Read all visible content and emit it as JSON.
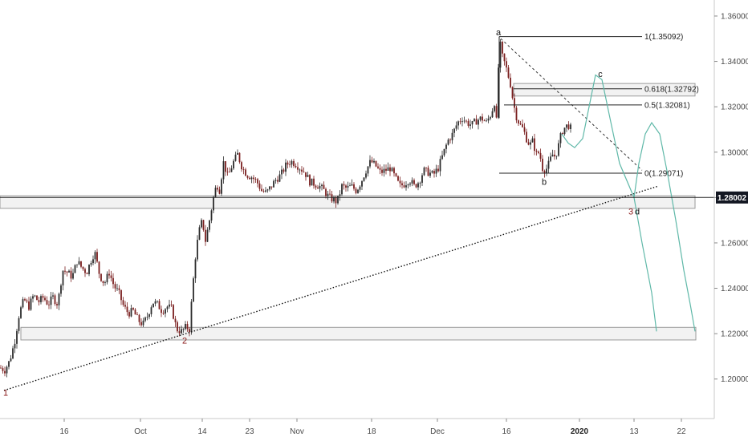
{
  "chart_data": {
    "type": "candlestick",
    "y_axis": {
      "ticks": [
        "1.36000",
        "1.34000",
        "1.32000",
        "1.30000",
        "1.28000",
        "1.26000",
        "1.24000",
        "1.22000",
        "1.20000"
      ],
      "range": [
        1.184,
        1.366
      ]
    },
    "x_axis": {
      "ticks": [
        {
          "label": "16",
          "bold": false
        },
        {
          "label": "Oct",
          "bold": false
        },
        {
          "label": "14",
          "bold": false
        },
        {
          "label": "23",
          "bold": false
        },
        {
          "label": "Nov",
          "bold": false
        },
        {
          "label": "18",
          "bold": false
        },
        {
          "label": "Dec",
          "bold": false
        },
        {
          "label": "16",
          "bold": false
        },
        {
          "label": "2020",
          "bold": true
        },
        {
          "label": "13",
          "bold": false
        },
        {
          "label": "22",
          "bold": false
        }
      ]
    },
    "current_price": {
      "label": "1.28002",
      "value": 1.28002
    },
    "price_path": [
      [
        0,
        1.205
      ],
      [
        6,
        1.204
      ],
      [
        12,
        1.208
      ],
      [
        18,
        1.216
      ],
      [
        24,
        1.229
      ],
      [
        30,
        1.235
      ],
      [
        36,
        1.232
      ],
      [
        42,
        1.237
      ],
      [
        48,
        1.234
      ],
      [
        54,
        1.236
      ],
      [
        60,
        1.233
      ],
      [
        66,
        1.236
      ],
      [
        72,
        1.233
      ],
      [
        78,
        1.248
      ],
      [
        84,
        1.247
      ],
      [
        90,
        1.245
      ],
      [
        96,
        1.252
      ],
      [
        102,
        1.249
      ],
      [
        108,
        1.247
      ],
      [
        114,
        1.253
      ],
      [
        118,
        1.256
      ],
      [
        124,
        1.246
      ],
      [
        130,
        1.242
      ],
      [
        136,
        1.247
      ],
      [
        142,
        1.241
      ],
      [
        148,
        1.238
      ],
      [
        154,
        1.232
      ],
      [
        160,
        1.229
      ],
      [
        166,
        1.23
      ],
      [
        172,
        1.226
      ],
      [
        178,
        1.224
      ],
      [
        184,
        1.228
      ],
      [
        190,
        1.234
      ],
      [
        196,
        1.233
      ],
      [
        202,
        1.23
      ],
      [
        208,
        1.232
      ],
      [
        214,
        1.231
      ],
      [
        220,
        1.222
      ],
      [
        226,
        1.221
      ],
      [
        232,
        1.223
      ],
      [
        236,
        1.222
      ],
      [
        240,
        1.24
      ],
      [
        244,
        1.256
      ],
      [
        248,
        1.265
      ],
      [
        252,
        1.27
      ],
      [
        256,
        1.261
      ],
      [
        260,
        1.268
      ],
      [
        266,
        1.28
      ],
      [
        270,
        1.286
      ],
      [
        274,
        1.283
      ],
      [
        278,
        1.296
      ],
      [
        284,
        1.289
      ],
      [
        290,
        1.295
      ],
      [
        296,
        1.299
      ],
      [
        302,
        1.293
      ],
      [
        308,
        1.29
      ],
      [
        314,
        1.289
      ],
      [
        320,
        1.287
      ],
      [
        326,
        1.283
      ],
      [
        332,
        1.282
      ],
      [
        338,
        1.285
      ],
      [
        344,
        1.288
      ],
      [
        350,
        1.29
      ],
      [
        356,
        1.294
      ],
      [
        362,
        1.296
      ],
      [
        368,
        1.295
      ],
      [
        374,
        1.293
      ],
      [
        380,
        1.291
      ],
      [
        386,
        1.287
      ],
      [
        392,
        1.286
      ],
      [
        398,
        1.285
      ],
      [
        404,
        1.283
      ],
      [
        410,
        1.28
      ],
      [
        416,
        1.279
      ],
      [
        420,
        1.278
      ],
      [
        426,
        1.285
      ],
      [
        432,
        1.284
      ],
      [
        438,
        1.285
      ],
      [
        444,
        1.283
      ],
      [
        450,
        1.287
      ],
      [
        456,
        1.292
      ],
      [
        462,
        1.296
      ],
      [
        468,
        1.294
      ],
      [
        474,
        1.291
      ],
      [
        480,
        1.292
      ],
      [
        486,
        1.293
      ],
      [
        492,
        1.289
      ],
      [
        498,
        1.285
      ],
      [
        504,
        1.286
      ],
      [
        510,
        1.288
      ],
      [
        516,
        1.285
      ],
      [
        522,
        1.287
      ],
      [
        528,
        1.292
      ],
      [
        534,
        1.291
      ],
      [
        540,
        1.29
      ],
      [
        546,
        1.293
      ],
      [
        552,
        1.299
      ],
      [
        558,
        1.305
      ],
      [
        564,
        1.308
      ],
      [
        570,
        1.313
      ],
      [
        576,
        1.315
      ],
      [
        582,
        1.313
      ],
      [
        588,
        1.312
      ],
      [
        594,
        1.314
      ],
      [
        600,
        1.315
      ],
      [
        606,
        1.313
      ],
      [
        612,
        1.317
      ],
      [
        616,
        1.322
      ],
      [
        619,
        1.312
      ],
      [
        622,
        1.35
      ],
      [
        626,
        1.342
      ],
      [
        630,
        1.338
      ],
      [
        636,
        1.33
      ],
      [
        640,
        1.321
      ],
      [
        644,
        1.315
      ],
      [
        648,
        1.312
      ],
      [
        652,
        1.31
      ],
      [
        656,
        1.306
      ],
      [
        660,
        1.303
      ],
      [
        664,
        1.305
      ],
      [
        668,
        1.299
      ],
      [
        672,
        1.3
      ],
      [
        676,
        1.293
      ],
      [
        680,
        1.292
      ],
      [
        684,
        1.295
      ],
      [
        688,
        1.299
      ],
      [
        692,
        1.298
      ],
      [
        696,
        1.303
      ],
      [
        700,
        1.309
      ],
      [
        704,
        1.311
      ],
      [
        708,
        1.312
      ],
      [
        712,
        1.31
      ]
    ],
    "fib_levels": [
      {
        "label": "1(1.35092)",
        "value": 1.35092
      },
      {
        "label": "0.618(1.32792)",
        "value": 1.32792
      },
      {
        "label": "0.5(1.32081)",
        "value": 1.32081
      },
      {
        "label": "0(1.29071)",
        "value": 1.29071
      }
    ],
    "zones": [
      {
        "from": 1.277,
        "to": 1.279
      },
      {
        "from": 1.219,
        "to": 1.221
      },
      {
        "from": 1.3265,
        "to": 1.3285
      }
    ],
    "wave_labels": [
      {
        "text": "1",
        "style": "red"
      },
      {
        "text": "2",
        "style": "red"
      },
      {
        "text": "3",
        "style": "red"
      },
      {
        "text": "a",
        "style": "dark"
      },
      {
        "text": "b",
        "style": "dark"
      },
      {
        "text": "c",
        "style": "dark"
      },
      {
        "text": "d",
        "style": "dark"
      }
    ]
  }
}
